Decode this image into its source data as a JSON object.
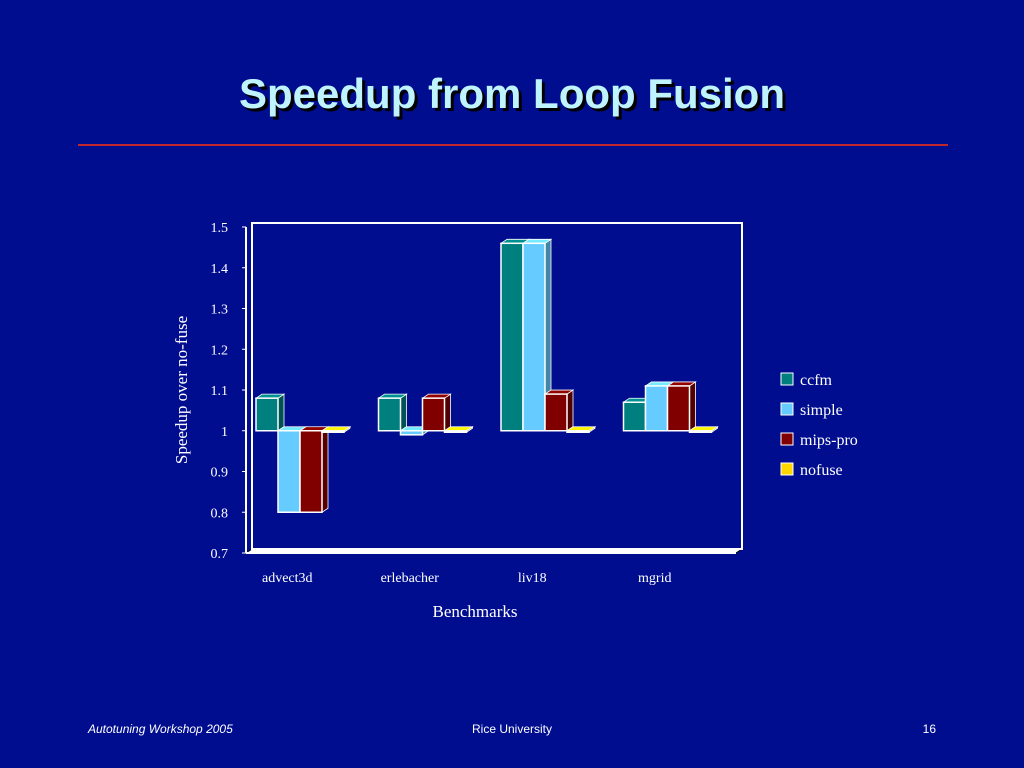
{
  "slide": {
    "title": "Speedup from Loop Fusion",
    "footer_left": "Autotuning Workshop  2005",
    "footer_center": "Rice University",
    "footer_right": "16"
  },
  "colors": {
    "background": "#000d8f",
    "title_text": "#bff4ff",
    "rule": "#c1272d"
  },
  "chart_data": {
    "type": "bar",
    "title": "",
    "xlabel": "Benchmarks",
    "ylabel": "Speedup over no-fuse",
    "ylim": [
      0.7,
      1.5
    ],
    "yticks": [
      "1.5",
      "1.4",
      "1.3",
      "1.2",
      "1.1",
      "1",
      "0.9",
      "0.8",
      "0.7"
    ],
    "baseline": 1,
    "categories": [
      "advect3d",
      "erlebacher",
      "liv18",
      "mgrid"
    ],
    "series": [
      {
        "name": "ccfm",
        "color": "#007f7f",
        "values": [
          1.08,
          1.08,
          1.46,
          1.07
        ]
      },
      {
        "name": "simple",
        "color": "#66ccff",
        "values": [
          0.8,
          0.99,
          1.46,
          1.11
        ]
      },
      {
        "name": "mips-pro",
        "color": "#800000",
        "values": [
          0.8,
          1.08,
          1.09,
          1.11
        ]
      },
      {
        "name": "nofuse",
        "color": "#ffd700",
        "values": [
          1.0,
          1.0,
          1.0,
          1.0
        ]
      }
    ],
    "legend_position": "right",
    "grid": false
  }
}
